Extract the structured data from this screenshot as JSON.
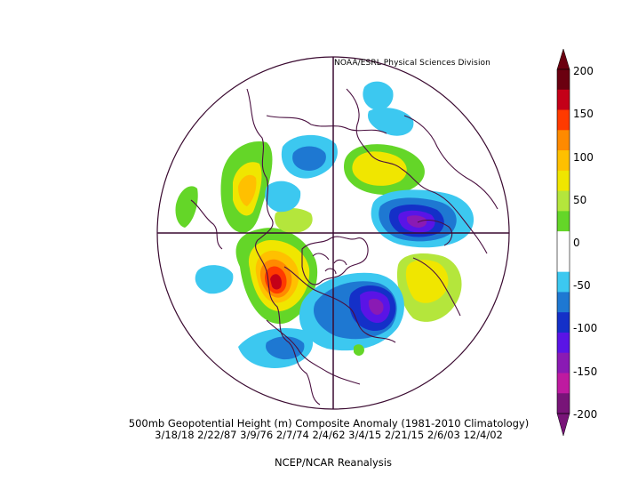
{
  "credit": "NOAA/ESRL Physical Sciences Division",
  "caption": {
    "line1": "500mb Geopotential Height (m) Composite Anomaly (1981-2010 Climatology)",
    "line2": "3/18/18 2/22/87 3/9/76 2/7/74 2/4/62 3/4/15 2/21/15 2/6/03 12/4/02",
    "line3": "NCEP/NCAR Reanalysis"
  },
  "colorbar": {
    "labels": [
      "200",
      "150",
      "100",
      "50",
      "0",
      "-50",
      "-100",
      "-150",
      "-200"
    ],
    "colors": [
      "#6b0010",
      "#c40018",
      "#ff3a00",
      "#ff8a00",
      "#ffc000",
      "#f0e600",
      "#b4e63c",
      "#64d628",
      "#ffffff",
      "#ffffff",
      "#3cc8f0",
      "#1e78d2",
      "#1430c8",
      "#5a14e6",
      "#8a1ab4",
      "#be1aa0",
      "#781478"
    ]
  }
}
